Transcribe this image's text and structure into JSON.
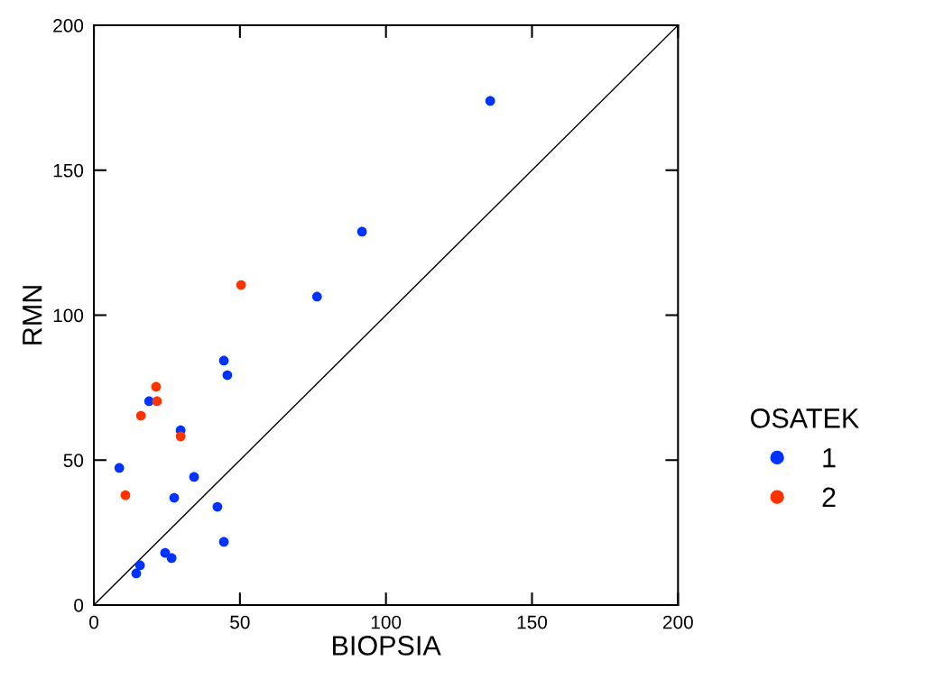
{
  "chart_data": {
    "type": "scatter",
    "xlabel": "BIOPSIA",
    "ylabel": "RMN",
    "legend_title": "OSATEK",
    "legend": "right",
    "marker": "circle",
    "grid": false,
    "xlim": [
      0,
      200
    ],
    "ylim": [
      0,
      200
    ],
    "xticks": [
      0,
      50,
      100,
      150,
      200
    ],
    "yticks": [
      0,
      50,
      100,
      150,
      200
    ],
    "series": [
      {
        "name": "1",
        "color": "#0033ff",
        "x": [
          135.7,
          91.8,
          76.4,
          44.5,
          45.7,
          18.9,
          29.7,
          8.7,
          34.3,
          27.5,
          42.3,
          44.5,
          24.4,
          26.6,
          15.8,
          14.5
        ],
        "values": [
          173.9,
          128.8,
          106.4,
          84.3,
          79.3,
          70.3,
          60.3,
          47.3,
          44.2,
          37.0,
          33.9,
          21.8,
          18.0,
          16.2,
          13.7,
          10.9
        ]
      },
      {
        "name": "2",
        "color": "#ff3300",
        "x": [
          50.4,
          21.3,
          21.6,
          16.1,
          29.7,
          10.8
        ],
        "values": [
          110.4,
          75.3,
          70.3,
          65.3,
          58.2,
          37.9
        ]
      },
      {
        "type": "line",
        "color": "#000000",
        "marker": "none",
        "line_style": "solid",
        "x": [
          0,
          200
        ],
        "values": [
          0,
          200
        ]
      }
    ]
  }
}
